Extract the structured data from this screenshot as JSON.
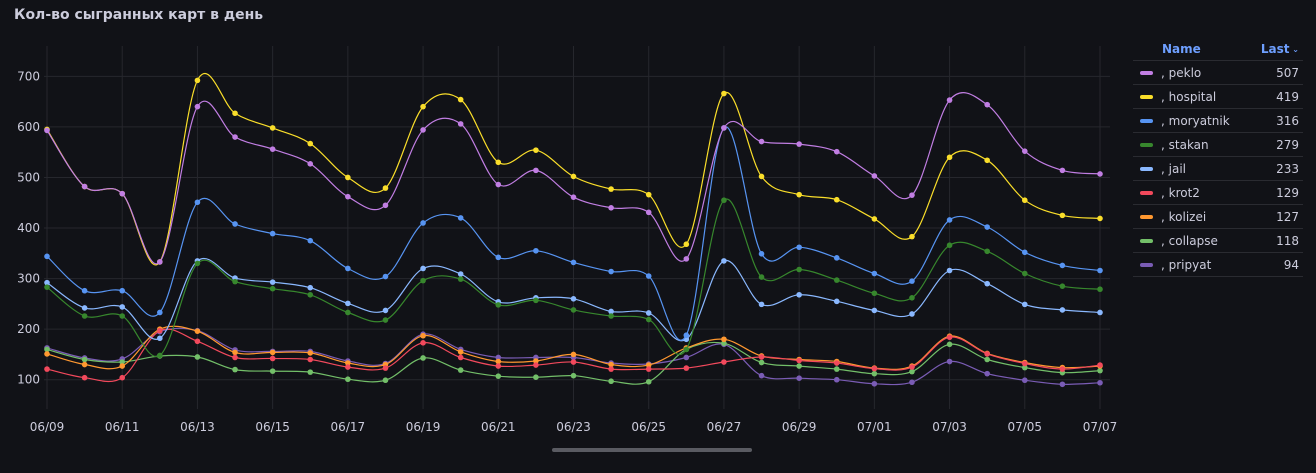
{
  "panel": {
    "title": "Кол-во сыгранных карт в день"
  },
  "legend": {
    "header_name": "Name",
    "header_last": "Last",
    "sort_icon": "chevron-down-icon",
    "rows": [
      {
        "name": ", peklo",
        "last": "507",
        "color": "#c17ee3"
      },
      {
        "name": ", hospital",
        "last": "419",
        "color": "#fade2a"
      },
      {
        "name": ", moryatnik",
        "last": "316",
        "color": "#5794f2"
      },
      {
        "name": ", stakan",
        "last": "279",
        "color": "#37872d"
      },
      {
        "name": ", jail",
        "last": "233",
        "color": "#8ab8ff"
      },
      {
        "name": ", krot2",
        "last": "129",
        "color": "#f2495c"
      },
      {
        "name": ", kolizei",
        "last": "127",
        "color": "#ff9830"
      },
      {
        "name": ", collapse",
        "last": "118",
        "color": "#73bf69"
      },
      {
        "name": ", pripyat",
        "last": "94",
        "color": "#7a5cb5"
      }
    ]
  },
  "chart_data": {
    "type": "line",
    "x": [
      "06/09",
      "06/10",
      "06/11",
      "06/12",
      "06/13",
      "06/14",
      "06/15",
      "06/16",
      "06/17",
      "06/18",
      "06/19",
      "06/20",
      "06/21",
      "06/22",
      "06/23",
      "06/24",
      "06/25",
      "06/26",
      "06/27",
      "06/28",
      "06/29",
      "06/30",
      "07/01",
      "07/02",
      "07/03",
      "07/04",
      "07/05",
      "07/06",
      "07/07"
    ],
    "tick_labels": [
      "06/09",
      "06/11",
      "06/13",
      "06/15",
      "06/17",
      "06/19",
      "06/21",
      "06/23",
      "06/25",
      "06/27",
      "06/29",
      "07/01",
      "07/03",
      "07/05",
      "07/07"
    ],
    "yticks": [
      100,
      200,
      300,
      400,
      500,
      600,
      700
    ],
    "ylim": [
      50,
      760
    ],
    "grid": true,
    "legend_position": "right",
    "series": [
      {
        "name": ", peklo",
        "color": "#c17ee3",
        "values": [
          593,
          482,
          468,
          333,
          640,
          580,
          556,
          527,
          462,
          445,
          594,
          606,
          486,
          514,
          461,
          440,
          431,
          339,
          598,
          571,
          566,
          551,
          503,
          465,
          653,
          644,
          552,
          514,
          507
        ]
      },
      {
        "name": ", hospital",
        "color": "#fade2a",
        "values": [
          595,
          482,
          468,
          333,
          692,
          627,
          598,
          567,
          500,
          479,
          640,
          654,
          530,
          554,
          502,
          477,
          466,
          368,
          666,
          502,
          466,
          456,
          418,
          383,
          540,
          534,
          455,
          425,
          419
        ]
      },
      {
        "name": ", moryatnik",
        "color": "#5794f2",
        "values": [
          344,
          276,
          276,
          233,
          451,
          408,
          389,
          375,
          320,
          304,
          410,
          420,
          342,
          355,
          332,
          314,
          305,
          188,
          598,
          349,
          362,
          341,
          310,
          295,
          416,
          402,
          352,
          326,
          316
        ]
      },
      {
        "name": ", stakan",
        "color": "#37872d",
        "values": [
          283,
          226,
          226,
          148,
          330,
          294,
          280,
          268,
          233,
          218,
          296,
          299,
          248,
          257,
          238,
          226,
          219,
          160,
          455,
          303,
          318,
          297,
          271,
          262,
          366,
          354,
          310,
          285,
          279
        ]
      },
      {
        "name": ", jail",
        "color": "#8ab8ff",
        "values": [
          292,
          242,
          244,
          182,
          335,
          301,
          293,
          282,
          251,
          237,
          320,
          309,
          254,
          262,
          260,
          235,
          232,
          180,
          335,
          249,
          268,
          255,
          237,
          230,
          316,
          290,
          249,
          238,
          233
        ]
      },
      {
        "name": ", krot2",
        "color": "#f2495c",
        "values": [
          121,
          104,
          104,
          197,
          176,
          144,
          142,
          140,
          125,
          123,
          173,
          144,
          127,
          129,
          135,
          121,
          121,
          123,
          135,
          145,
          138,
          133,
          122,
          125,
          184,
          151,
          132,
          121,
          129
        ]
      },
      {
        "name": ", kolizei",
        "color": "#ff9830",
        "values": [
          151,
          130,
          127,
          200,
          196,
          154,
          154,
          153,
          133,
          130,
          187,
          155,
          136,
          137,
          150,
          130,
          129,
          163,
          180,
          147,
          140,
          136,
          123,
          127,
          186,
          152,
          134,
          124,
          127
        ]
      },
      {
        "name": ", collapse",
        "color": "#73bf69",
        "values": [
          160,
          140,
          135,
          147,
          145,
          120,
          117,
          115,
          101,
          99,
          143,
          119,
          107,
          105,
          108,
          97,
          96,
          160,
          172,
          134,
          127,
          121,
          112,
          116,
          170,
          140,
          124,
          114,
          118
        ]
      },
      {
        "name": ", pripyat",
        "color": "#7a5cb5",
        "values": [
          163,
          143,
          141,
          195,
          197,
          159,
          156,
          156,
          137,
          132,
          190,
          160,
          144,
          144,
          144,
          133,
          131,
          144,
          170,
          108,
          103,
          100,
          92,
          95,
          136,
          112,
          99,
          91,
          94
        ]
      }
    ]
  }
}
